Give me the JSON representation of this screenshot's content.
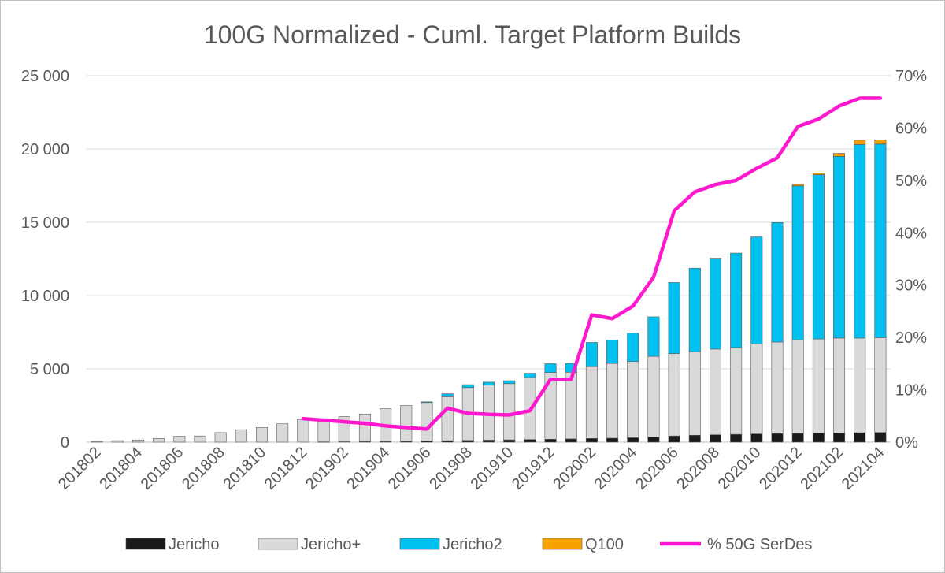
{
  "chart_data": {
    "type": "bar",
    "stacked": true,
    "title": "100G Normalized - Cuml. Target Platform Builds",
    "categories": [
      "201802",
      "201803",
      "201804",
      "201805",
      "201806",
      "201807",
      "201808",
      "201809",
      "201810",
      "201811",
      "201812",
      "201901",
      "201902",
      "201903",
      "201904",
      "201905",
      "201906",
      "201907",
      "201908",
      "201909",
      "201910",
      "201911",
      "201912",
      "202001",
      "202002",
      "202003",
      "202004",
      "202005",
      "202006",
      "202007",
      "202008",
      "202009",
      "202010",
      "202011",
      "202012",
      "202101",
      "202102",
      "202103",
      "202104"
    ],
    "x_tick_labels": [
      "201802",
      "201804",
      "201806",
      "201808",
      "201810",
      "201812",
      "201902",
      "201904",
      "201906",
      "201908",
      "201910",
      "201912",
      "202002",
      "202004",
      "202006",
      "202008",
      "202010",
      "202012",
      "202102",
      "202104"
    ],
    "y_left": {
      "min": 0,
      "max": 25000,
      "ticks": [
        "0",
        "5 000",
        "10 000",
        "15 000",
        "20 000",
        "25 000"
      ],
      "tick_values": [
        0,
        5000,
        10000,
        15000,
        20000,
        25000
      ]
    },
    "y_right": {
      "min": 0,
      "max": 0.7,
      "ticks": [
        "0%",
        "10%",
        "20%",
        "30%",
        "40%",
        "50%",
        "60%",
        "70%"
      ],
      "tick_values": [
        0,
        0.1,
        0.2,
        0.3,
        0.4,
        0.5,
        0.6,
        0.7
      ]
    },
    "grid": true,
    "legend_position": "bottom",
    "series": [
      {
        "name": "Jericho",
        "kind": "bar",
        "axis": "left",
        "color": "#1a1a1a",
        "values": [
          0,
          0,
          0,
          0,
          0,
          0,
          0,
          0,
          0,
          0,
          0,
          20,
          30,
          40,
          50,
          60,
          80,
          100,
          120,
          140,
          160,
          180,
          200,
          220,
          250,
          270,
          300,
          350,
          420,
          470,
          500,
          530,
          560,
          580,
          600,
          610,
          620,
          640,
          660
        ]
      },
      {
        "name": "Jericho+",
        "kind": "bar",
        "axis": "left",
        "color": "#d9d9d9",
        "values": [
          50,
          100,
          150,
          250,
          400,
          420,
          650,
          850,
          1000,
          1250,
          1550,
          1580,
          1720,
          1880,
          2230,
          2440,
          2620,
          3000,
          3600,
          3750,
          3830,
          4220,
          4550,
          4550,
          4900,
          5100,
          5200,
          5500,
          5620,
          5700,
          5850,
          5920,
          6140,
          6250,
          6380,
          6430,
          6480,
          6460,
          6470
        ]
      },
      {
        "name": "Jericho2",
        "kind": "bar",
        "axis": "left",
        "color": "#00c0f0",
        "values": [
          0,
          0,
          0,
          0,
          0,
          0,
          0,
          0,
          0,
          0,
          0,
          0,
          0,
          0,
          0,
          0,
          50,
          200,
          200,
          200,
          200,
          300,
          600,
          600,
          1650,
          1600,
          1950,
          2700,
          4850,
          5700,
          6200,
          6450,
          7300,
          8150,
          10500,
          11200,
          12400,
          13200,
          13200
        ]
      },
      {
        "name": "Q100",
        "kind": "bar",
        "axis": "left",
        "color": "#f7a000",
        "values": [
          0,
          0,
          0,
          0,
          0,
          0,
          0,
          0,
          0,
          0,
          0,
          0,
          0,
          0,
          0,
          0,
          0,
          0,
          0,
          0,
          0,
          0,
          0,
          0,
          0,
          0,
          0,
          0,
          0,
          0,
          0,
          0,
          0,
          0,
          100,
          100,
          200,
          300,
          300
        ]
      },
      {
        "name": "% 50G SerDes",
        "kind": "line",
        "axis": "right",
        "color": "#ff19ce",
        "values": [
          null,
          null,
          null,
          null,
          null,
          null,
          null,
          null,
          null,
          null,
          0.045,
          0.042,
          0.039,
          0.036,
          0.031,
          0.028,
          0.025,
          0.065,
          0.055,
          0.053,
          0.052,
          0.06,
          0.12,
          0.12,
          0.243,
          0.236,
          0.26,
          0.315,
          0.442,
          0.478,
          0.492,
          0.5,
          0.523,
          0.543,
          0.603,
          0.617,
          0.642,
          0.657,
          0.657
        ]
      }
    ]
  }
}
